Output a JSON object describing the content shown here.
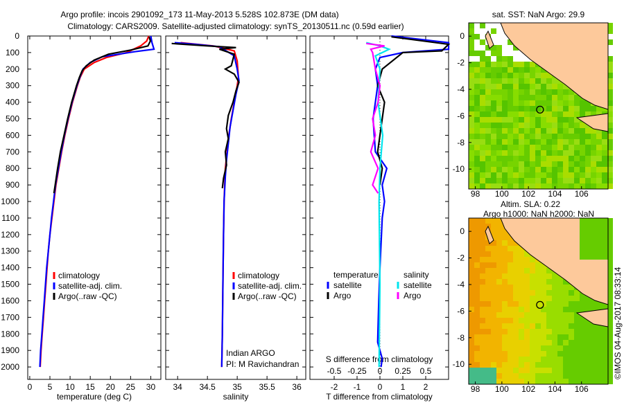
{
  "title_line1": "Argo profile: incois 2901092_173 11-May-2013 5.528S 102.873E (DM data)",
  "title_line2": "Climatology: CARS2009. Satellite-adjusted climatology: synTS_20130511.nc (0.59d earlier)",
  "footer_stamp": "©IMOS 04-Aug-2017 08:33:14",
  "colors": {
    "climatology": "#ff0000",
    "satellite": "#0000ff",
    "argo": "#000000",
    "s_satellite": "#00e5ee",
    "s_argo": "#ff00ff",
    "land": "#fdc99b"
  },
  "chart_data": [
    {
      "type": "line",
      "name": "temperature-profile",
      "xlabel": "temperature (deg C)",
      "ylabel": "",
      "xlim": [
        -0.5,
        32.5
      ],
      "ylim": [
        2075,
        0
      ],
      "xticks": [
        "0",
        "5",
        "10",
        "15",
        "20",
        "25",
        "30"
      ],
      "xtick_values": [
        0,
        5,
        10,
        15,
        20,
        25,
        30
      ],
      "yticks": [
        "0",
        "100",
        "200",
        "300",
        "400",
        "500",
        "600",
        "700",
        "800",
        "900",
        "1000",
        "1100",
        "1200",
        "1300",
        "1400",
        "1500",
        "1600",
        "1700",
        "1800",
        "1900",
        "2000"
      ],
      "ytick_values": [
        0,
        100,
        200,
        300,
        400,
        500,
        600,
        700,
        800,
        900,
        1000,
        1100,
        1200,
        1300,
        1400,
        1500,
        1600,
        1700,
        1800,
        1900,
        2000
      ],
      "legend": [
        "climatology",
        "satellite-adj. clim.",
        "Argo(..raw -QC)"
      ],
      "series": [
        {
          "name": "climatology",
          "color": "#ff0000",
          "points": [
            [
              29.5,
              0
            ],
            [
              29,
              30
            ],
            [
              27.5,
              60
            ],
            [
              24,
              100
            ],
            [
              19,
              130
            ],
            [
              16,
              160
            ],
            [
              13.5,
              200
            ],
            [
              12.5,
              250
            ],
            [
              11.8,
              300
            ],
            [
              10.6,
              400
            ],
            [
              9.6,
              500
            ],
            [
              8.7,
              600
            ],
            [
              7.9,
              700
            ],
            [
              7.2,
              800
            ],
            [
              6.5,
              900
            ],
            [
              6,
              1000
            ],
            [
              5.5,
              1100
            ],
            [
              5,
              1200
            ],
            [
              4.6,
              1300
            ],
            [
              4.3,
              1400
            ],
            [
              4,
              1500
            ],
            [
              3.7,
              1600
            ],
            [
              3.4,
              1700
            ],
            [
              3.1,
              1800
            ],
            [
              2.8,
              1900
            ],
            [
              2.6,
              2000
            ]
          ]
        },
        {
          "name": "satellite",
          "color": "#0000ff",
          "points": [
            [
              30,
              0
            ],
            [
              30.3,
              40
            ],
            [
              30.8,
              80
            ],
            [
              26,
              95
            ],
            [
              18,
              125
            ],
            [
              15,
              160
            ],
            [
              13.2,
              200
            ],
            [
              12.4,
              250
            ],
            [
              11.7,
              300
            ],
            [
              10.5,
              400
            ],
            [
              9.5,
              500
            ],
            [
              8.6,
              600
            ],
            [
              7.8,
              700
            ],
            [
              7.1,
              800
            ],
            [
              6.4,
              900
            ],
            [
              5.9,
              1000
            ],
            [
              5.4,
              1100
            ],
            [
              5,
              1200
            ],
            [
              4.6,
              1300
            ],
            [
              4.2,
              1400
            ],
            [
              3.9,
              1500
            ],
            [
              3.6,
              1600
            ],
            [
              3.3,
              1700
            ],
            [
              3,
              1800
            ],
            [
              2.7,
              1900
            ],
            [
              2.5,
              2000
            ]
          ]
        },
        {
          "name": "argo",
          "color": "#000000",
          "points": [
            [
              29.6,
              5
            ],
            [
              29.9,
              30
            ],
            [
              29.3,
              60
            ],
            [
              25,
              85
            ],
            [
              19.5,
              110
            ],
            [
              16,
              145
            ],
            [
              14,
              180
            ],
            [
              13,
              210
            ],
            [
              12.3,
              250
            ],
            [
              11.6,
              300
            ],
            [
              10.4,
              400
            ],
            [
              9.4,
              500
            ],
            [
              8.5,
              600
            ],
            [
              7.6,
              700
            ],
            [
              6.9,
              800
            ],
            [
              6.3,
              900
            ],
            [
              6,
              950
            ]
          ]
        }
      ]
    },
    {
      "type": "line",
      "name": "salinity-profile",
      "xlabel": "salinity",
      "xlim": [
        33.8,
        36.15
      ],
      "ylim": [
        2075,
        0
      ],
      "xticks": [
        "34",
        "34.5",
        "35",
        "35.5",
        "36"
      ],
      "xtick_values": [
        34,
        34.5,
        35,
        35.5,
        36
      ],
      "legend": [
        "climatology",
        "satellite-adj. clim.",
        "Argo(..raw -QC)"
      ],
      "annotation": [
        "Indian ARGO",
        "PI: M Ravichandran"
      ],
      "series": [
        {
          "name": "climatology",
          "color": "#ff0000",
          "points": [
            [
              34.05,
              40
            ],
            [
              34.6,
              60
            ],
            [
              34.95,
              90
            ],
            [
              35.0,
              150
            ],
            [
              35.02,
              250
            ],
            [
              35.0,
              300
            ],
            [
              34.95,
              400
            ],
            [
              34.9,
              500
            ],
            [
              34.86,
              600
            ],
            [
              34.83,
              700
            ],
            [
              34.8,
              800
            ],
            [
              34.79,
              900
            ],
            [
              34.78,
              1000
            ],
            [
              34.77,
              1200
            ],
            [
              34.76,
              1500
            ],
            [
              34.75,
              1800
            ],
            [
              34.74,
              2000
            ]
          ]
        },
        {
          "name": "satellite",
          "color": "#0000ff",
          "points": [
            [
              33.95,
              40
            ],
            [
              34.3,
              50
            ],
            [
              34.7,
              65
            ],
            [
              34.95,
              120
            ],
            [
              35.0,
              200
            ],
            [
              35.03,
              270
            ],
            [
              34.98,
              350
            ],
            [
              34.93,
              450
            ],
            [
              34.88,
              550
            ],
            [
              34.85,
              650
            ],
            [
              34.82,
              750
            ],
            [
              34.8,
              850
            ],
            [
              34.78,
              1000
            ],
            [
              34.77,
              1200
            ],
            [
              34.76,
              1500
            ],
            [
              34.75,
              1800
            ],
            [
              34.74,
              2000
            ]
          ]
        },
        {
          "name": "argo",
          "color": "#000000",
          "points": [
            [
              33.9,
              45
            ],
            [
              34.5,
              60
            ],
            [
              34.98,
              70
            ],
            [
              34.7,
              80
            ],
            [
              34.95,
              110
            ],
            [
              34.9,
              180
            ],
            [
              34.8,
              200
            ],
            [
              34.95,
              230
            ],
            [
              35.03,
              280
            ],
            [
              34.98,
              330
            ],
            [
              34.93,
              400
            ],
            [
              34.85,
              480
            ],
            [
              34.82,
              560
            ],
            [
              34.85,
              620
            ],
            [
              34.8,
              700
            ],
            [
              34.82,
              780
            ],
            [
              34.77,
              860
            ],
            [
              34.75,
              920
            ]
          ]
        }
      ]
    },
    {
      "type": "line",
      "name": "difference-profile",
      "xlabel": "T difference from climatology",
      "xlabel_top": "S difference from climatology",
      "xlim": [
        -3.06,
        3.0
      ],
      "s_scale": 0.25,
      "ylim": [
        2075,
        0
      ],
      "xticks": [
        "-2",
        "-1",
        "0",
        "1",
        "2"
      ],
      "xtick_values": [
        -2,
        -1,
        0,
        1,
        2
      ],
      "s_xticks": [
        "-0.5",
        "-0.25",
        "0",
        "0.25",
        "0.5"
      ],
      "s_xtick_values": [
        -0.5,
        -0.25,
        0,
        0.25,
        0.5
      ],
      "legend_titles": [
        "temperature",
        "salinity"
      ],
      "legend": [
        "satellite",
        "Argo",
        "satellite",
        "Argo"
      ],
      "series": [
        {
          "name": "t-satellite",
          "color": "#0000ff",
          "var": "T",
          "points": [
            [
              0.5,
              0
            ],
            [
              3,
              40
            ],
            [
              3,
              80
            ],
            [
              1,
              100
            ],
            [
              0,
              130
            ],
            [
              -0.2,
              200
            ],
            [
              -0.1,
              300
            ],
            [
              -0.3,
              500
            ],
            [
              -0.2,
              700
            ],
            [
              0.3,
              800
            ],
            [
              0.1,
              900
            ],
            [
              0.2,
              1000
            ],
            [
              0.1,
              1100
            ],
            [
              0,
              1400
            ],
            [
              -0.05,
              1600
            ],
            [
              -0.1,
              1850
            ],
            [
              0.1,
              1950
            ],
            [
              0.05,
              2000
            ]
          ]
        },
        {
          "name": "t-argo",
          "color": "#000000",
          "var": "T",
          "points": [
            [
              0.5,
              5
            ],
            [
              3,
              50
            ],
            [
              2.7,
              90
            ],
            [
              1,
              100
            ],
            [
              0.1,
              200
            ],
            [
              -0.1,
              300
            ],
            [
              0.2,
              400
            ],
            [
              0.1,
              500
            ],
            [
              -0.1,
              700
            ],
            [
              0.1,
              800
            ],
            [
              0,
              900
            ]
          ]
        },
        {
          "name": "s-satellite",
          "color": "#00e5ee",
          "var": "S",
          "points": [
            [
              -0.15,
              40
            ],
            [
              0,
              60
            ],
            [
              0.1,
              80
            ],
            [
              -0.05,
              120
            ],
            [
              0,
              200
            ],
            [
              -0.02,
              400
            ],
            [
              0.03,
              600
            ],
            [
              0,
              800
            ],
            [
              -0.01,
              1000
            ],
            [
              0,
              1500
            ],
            [
              -0.01,
              2000
            ]
          ]
        },
        {
          "name": "s-argo",
          "color": "#ff00ff",
          "var": "S",
          "points": [
            [
              -0.15,
              45
            ],
            [
              0.05,
              60
            ],
            [
              -0.1,
              80
            ],
            [
              -0.08,
              100
            ],
            [
              -0.05,
              200
            ],
            [
              0,
              300
            ],
            [
              -0.02,
              400
            ],
            [
              -0.08,
              500
            ],
            [
              -0.05,
              600
            ],
            [
              -0.1,
              700
            ],
            [
              -0.02,
              800
            ],
            [
              -0.08,
              900
            ],
            [
              -0.02,
              950
            ]
          ]
        }
      ]
    },
    {
      "type": "heatmap",
      "name": "sst-map",
      "title": "sat. SST: NaN Argo: 29.9",
      "xlim": [
        97.5,
        108
      ],
      "ylim": [
        -11.5,
        1
      ],
      "xticks": [
        "98",
        "100",
        "102",
        "104",
        "106"
      ],
      "xtick_values": [
        98,
        100,
        102,
        104,
        106
      ],
      "yticks": [
        "0",
        "-2",
        "-4",
        "-6",
        "-8",
        "-10"
      ],
      "ytick_values": [
        0,
        -2,
        -4,
        -6,
        -8,
        -10
      ],
      "argo_position": [
        102.873,
        -5.528
      ]
    },
    {
      "type": "heatmap",
      "name": "sla-map",
      "title": "Altim. SLA: 0.22",
      "subtitle": "Argo h1000: NaN h2000: NaN",
      "xlim": [
        97.5,
        108
      ],
      "ylim": [
        -11.5,
        1
      ],
      "xticks": [
        "98",
        "100",
        "102",
        "104",
        "106"
      ],
      "xtick_values": [
        98,
        100,
        102,
        104,
        106
      ],
      "yticks": [
        "0",
        "-2",
        "-4",
        "-6",
        "-8",
        "-10"
      ],
      "ytick_values": [
        0,
        -2,
        -4,
        -6,
        -8,
        -10
      ],
      "argo_position": [
        102.873,
        -5.528
      ]
    }
  ]
}
